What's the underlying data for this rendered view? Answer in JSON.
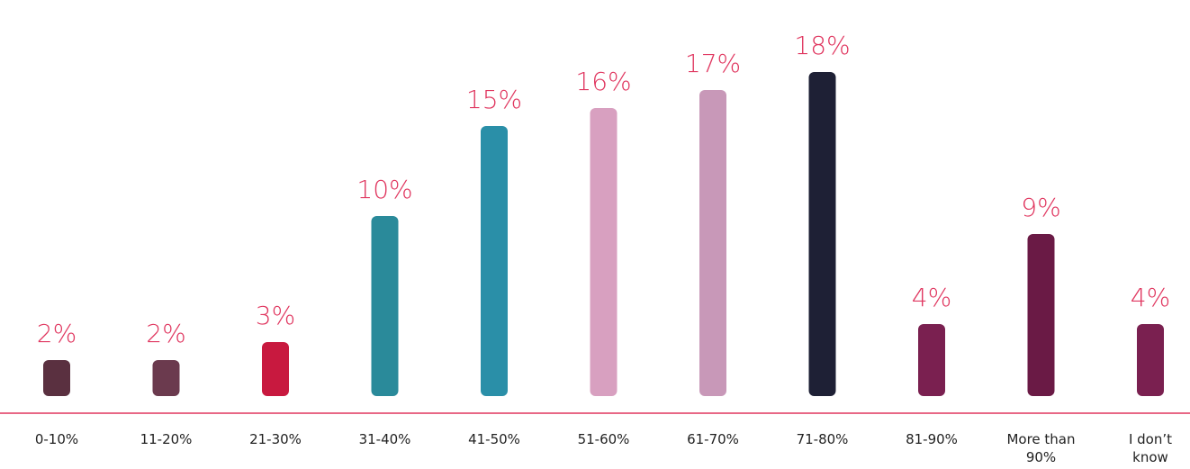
{
  "chart_data": {
    "type": "bar",
    "categories": [
      "0-10%",
      "11-20%",
      "21-30%",
      "31-40%",
      "41-50%",
      "51-60%",
      "61-70%",
      "71-80%",
      "81-90%",
      "More than 90%",
      "I don’t know"
    ],
    "values": [
      2,
      2,
      3,
      10,
      15,
      16,
      17,
      18,
      4,
      9,
      4
    ],
    "value_labels": [
      "2%",
      "2%",
      "3%",
      "10%",
      "15%",
      "16%",
      "17%",
      "18%",
      "4%",
      "9%",
      "4%"
    ],
    "colors": [
      "#5a3040",
      "#6b3a4e",
      "#c8193f",
      "#2a8a9a",
      "#2a8fa8",
      "#d8a0c0",
      "#c898b8",
      "#1e2035",
      "#7a2050",
      "#6a1a45",
      "#7a2050"
    ],
    "axis_color": "#e0365f"
  }
}
